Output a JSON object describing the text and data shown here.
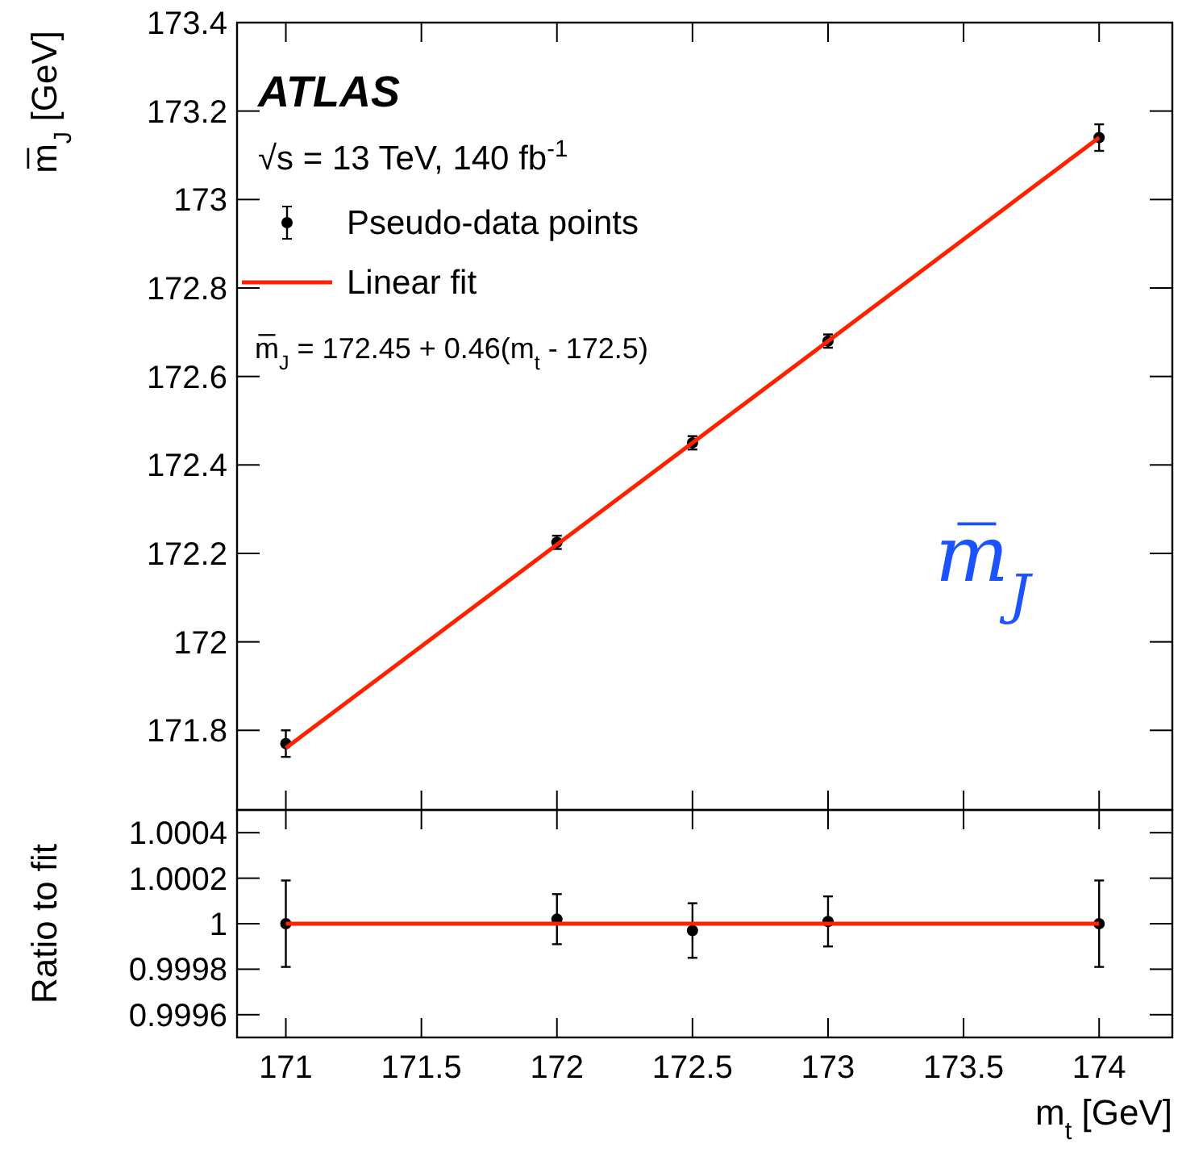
{
  "chart_data": [
    {
      "type": "scatter",
      "ylabel": "m̅$_{J}$ [GeV]",
      "xlim": [
        170.82,
        174.27
      ],
      "xticks": [
        171,
        171.5,
        172,
        172.5,
        173,
        173.5,
        174
      ],
      "ylim": [
        171.62,
        173.4
      ],
      "yticks": [
        171.8,
        172,
        172.2,
        172.4,
        172.6,
        172.8,
        173,
        173.2,
        173.4
      ],
      "tick_labels": "y",
      "legend": "top left",
      "annotations": [
        "ATLAS",
        "√s = 13 TeV, 140 fb$^{-1}$",
        "m̅$_{J}$ = 172.45 + 0.46(m$_{t}$ - 172.5)",
        "m̅$_{J}$"
      ],
      "series": [
        {
          "name": "Pseudo-data points",
          "marker": "circle",
          "color": "#000000",
          "x": [
            171,
            172,
            172.5,
            173,
            174
          ],
          "values": [
            171.77,
            172.225,
            172.45,
            172.68,
            173.14
          ],
          "errors": [
            0.03,
            0.015,
            0.015,
            0.015,
            0.03
          ]
        },
        {
          "name": "Linear fit",
          "type": "line",
          "color": "#ff2200",
          "x": [
            171,
            174
          ],
          "values": [
            171.76,
            173.14
          ]
        }
      ]
    },
    {
      "type": "scatter",
      "ylabel": "Ratio to fit",
      "xlabel": "m$_{t}$ [GeV]",
      "xlim": [
        170.82,
        174.27
      ],
      "xticks": [
        171,
        171.5,
        172,
        172.5,
        173,
        173.5,
        174
      ],
      "ylim": [
        0.9995,
        1.0005
      ],
      "yticks": [
        0.9996,
        0.9998,
        1,
        1.0002,
        1.0004
      ],
      "series": [
        {
          "marker": "circle",
          "color": "#000000",
          "x": [
            171,
            172,
            172.5,
            173,
            174
          ],
          "values": [
            1,
            1.00002,
            0.99997,
            1.00001,
            1
          ],
          "errors": [
            0.00019,
            0.00011,
            0.00012,
            0.00011,
            0.00019
          ]
        },
        {
          "type": "line",
          "color": "#ff2200",
          "x": [
            171,
            174
          ],
          "values": [
            1,
            1
          ]
        }
      ]
    }
  ]
}
